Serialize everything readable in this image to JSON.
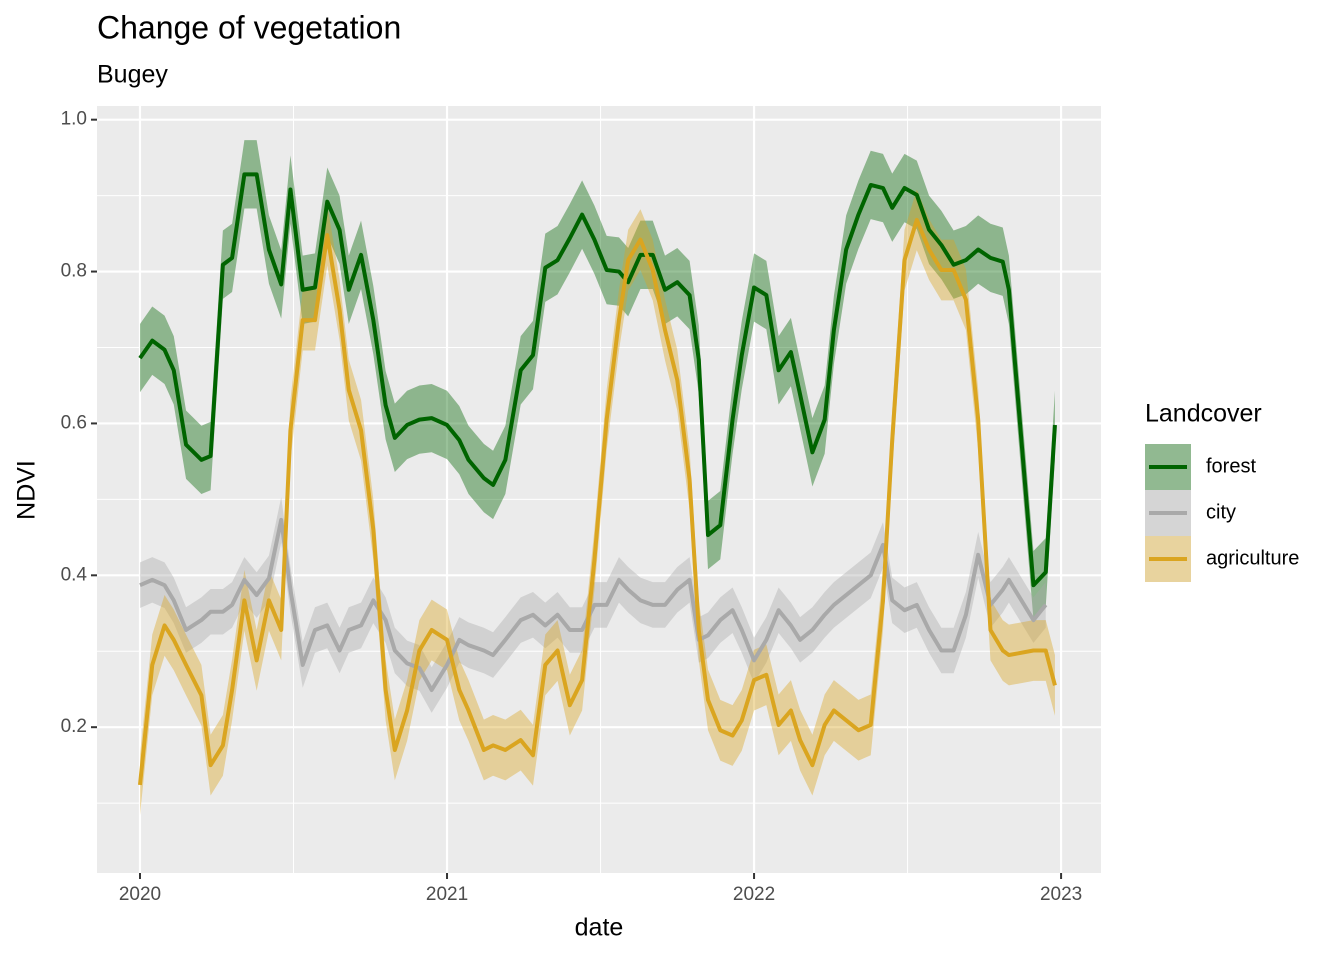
{
  "chart_data": {
    "type": "line",
    "title": "Change of vegetation",
    "subtitle": "Bugey",
    "x_label": "date",
    "y_label": "NDVI",
    "legend_title": "Landcover",
    "legend": "right",
    "grid": true,
    "xlim": [
      2019.86,
      2023.13
    ],
    "ylim": [
      0.008,
      1.018
    ],
    "xticks": [
      2020,
      2021,
      2022,
      2023
    ],
    "yticks": [
      0.2,
      0.4,
      0.6,
      0.8,
      {
        "value": 1,
        "label": "1.0"
      }
    ],
    "x": [
      2020.0,
      2020.04,
      2020.08,
      2020.11,
      2020.15,
      2020.2,
      2020.23,
      2020.27,
      2020.3,
      2020.34,
      2020.38,
      2020.42,
      2020.46,
      2020.49,
      2020.53,
      2020.57,
      2020.61,
      2020.65,
      2020.68,
      2020.72,
      2020.76,
      2020.8,
      2020.83,
      2020.87,
      2020.91,
      2020.95,
      2021.0,
      2021.04,
      2021.07,
      2021.12,
      2021.15,
      2021.19,
      2021.24,
      2021.28,
      2021.32,
      2021.36,
      2021.4,
      2021.44,
      2021.48,
      2021.52,
      2021.56,
      2021.59,
      2021.63,
      2021.67,
      2021.71,
      2021.75,
      2021.79,
      2021.82,
      2021.85,
      2021.89,
      2021.93,
      2021.96,
      2022.0,
      2022.04,
      2022.08,
      2022.12,
      2022.15,
      2022.19,
      2022.23,
      2022.26,
      2022.3,
      2022.34,
      2022.38,
      2022.42,
      2022.45,
      2022.49,
      2022.53,
      2022.57,
      2022.61,
      2022.65,
      2022.69,
      2022.73,
      2022.77,
      2022.81,
      2022.83,
      2022.91,
      2022.95,
      2022.98
    ],
    "series": [
      {
        "name": "forest",
        "color": "#006400",
        "band": 0.045,
        "values": [
          0.686,
          0.709,
          0.697,
          0.67,
          0.572,
          0.552,
          0.557,
          0.809,
          0.818,
          0.928,
          0.928,
          0.829,
          0.783,
          0.908,
          0.776,
          0.779,
          0.892,
          0.855,
          0.776,
          0.822,
          0.736,
          0.624,
          0.581,
          0.598,
          0.605,
          0.607,
          0.598,
          0.578,
          0.552,
          0.528,
          0.519,
          0.552,
          0.67,
          0.69,
          0.805,
          0.815,
          0.844,
          0.875,
          0.842,
          0.802,
          0.8,
          0.786,
          0.822,
          0.822,
          0.776,
          0.786,
          0.769,
          0.684,
          0.453,
          0.466,
          0.605,
          0.69,
          0.779,
          0.769,
          0.67,
          0.694,
          0.638,
          0.562,
          0.605,
          0.723,
          0.829,
          0.875,
          0.914,
          0.91,
          0.884,
          0.91,
          0.901,
          0.855,
          0.835,
          0.809,
          0.815,
          0.829,
          0.818,
          0.813,
          0.776,
          0.387,
          0.404,
          0.598
        ]
      },
      {
        "name": "city",
        "color": "#a9a9a9",
        "band": 0.03,
        "values": [
          0.387,
          0.394,
          0.387,
          0.367,
          0.328,
          0.341,
          0.352,
          0.352,
          0.361,
          0.394,
          0.374,
          0.396,
          0.473,
          0.381,
          0.282,
          0.328,
          0.334,
          0.301,
          0.328,
          0.334,
          0.367,
          0.341,
          0.301,
          0.284,
          0.278,
          0.249,
          0.282,
          0.315,
          0.308,
          0.301,
          0.295,
          0.315,
          0.341,
          0.348,
          0.334,
          0.348,
          0.328,
          0.328,
          0.361,
          0.361,
          0.394,
          0.381,
          0.367,
          0.361,
          0.361,
          0.381,
          0.394,
          0.315,
          0.321,
          0.341,
          0.354,
          0.328,
          0.288,
          0.315,
          0.354,
          0.334,
          0.315,
          0.328,
          0.348,
          0.361,
          0.374,
          0.387,
          0.4,
          0.44,
          0.367,
          0.354,
          0.361,
          0.328,
          0.301,
          0.301,
          0.348,
          0.427,
          0.361,
          0.381,
          0.394,
          0.341,
          0.361,
          null
        ]
      },
      {
        "name": "agriculture",
        "color": "#daa520",
        "band": 0.04,
        "values": [
          0.124,
          0.282,
          0.334,
          0.315,
          0.282,
          0.242,
          0.15,
          0.176,
          0.249,
          0.367,
          0.288,
          0.367,
          0.328,
          0.591,
          0.736,
          0.736,
          0.848,
          0.75,
          0.644,
          0.591,
          0.46,
          0.249,
          0.17,
          0.222,
          0.301,
          0.328,
          0.315,
          0.249,
          0.222,
          0.17,
          0.176,
          0.17,
          0.183,
          0.163,
          0.282,
          0.301,
          0.229,
          0.262,
          0.42,
          0.605,
          0.736,
          0.815,
          0.842,
          0.802,
          0.723,
          0.657,
          0.526,
          0.328,
          0.236,
          0.196,
          0.189,
          0.209,
          0.262,
          0.269,
          0.203,
          0.222,
          0.183,
          0.15,
          0.203,
          0.222,
          0.209,
          0.196,
          0.203,
          0.367,
          0.578,
          0.815,
          0.868,
          0.829,
          0.802,
          0.802,
          0.763,
          0.605,
          0.328,
          0.301,
          0.295,
          0.301,
          0.301,
          0.255
        ]
      }
    ]
  }
}
